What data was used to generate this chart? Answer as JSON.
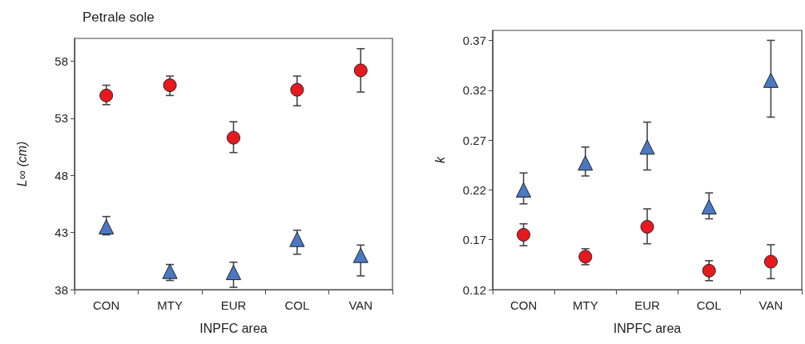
{
  "chart_data": [
    {
      "type": "scatter",
      "title": "Petrale sole",
      "xlabel": "INPFC area",
      "ylabel": "L∞ (cm)",
      "categories": [
        "CON",
        "MTY",
        "EUR",
        "COL",
        "VAN"
      ],
      "ylim": [
        38,
        60
      ],
      "yticks": [
        38,
        43,
        48,
        53,
        58
      ],
      "grid": false,
      "series": [
        {
          "color": "#e8191e",
          "marker": "circle",
          "values": [
            55.0,
            55.9,
            51.3,
            55.5,
            57.2
          ],
          "errors": [
            [
              54.2,
              55.9
            ],
            [
              55.0,
              56.7
            ],
            [
              50.0,
              52.7
            ],
            [
              54.1,
              56.7
            ],
            [
              55.3,
              59.1
            ]
          ]
        },
        {
          "color": "#4a78c2",
          "marker": "triangle",
          "values": [
            43.5,
            39.6,
            39.5,
            42.4,
            41.0
          ],
          "errors": [
            [
              42.8,
              44.4
            ],
            [
              38.8,
              40.2
            ],
            [
              38.2,
              40.4
            ],
            [
              41.1,
              43.2
            ],
            [
              39.2,
              41.9
            ]
          ]
        }
      ]
    },
    {
      "type": "scatter",
      "xlabel": "INPFC area",
      "ylabel": "k",
      "categories": [
        "CON",
        "MTY",
        "EUR",
        "COL",
        "VAN"
      ],
      "ylim": [
        0.12,
        0.38
      ],
      "yticks": [
        0.12,
        0.17,
        0.22,
        0.27,
        0.32,
        0.37
      ],
      "grid": false,
      "series": [
        {
          "color": "#e8191e",
          "marker": "circle",
          "values": [
            0.175,
            0.153,
            0.183,
            0.139,
            0.148
          ],
          "errors": [
            [
              0.164,
              0.186
            ],
            [
              0.145,
              0.161
            ],
            [
              0.166,
              0.201
            ],
            [
              0.129,
              0.149
            ],
            [
              0.131,
              0.165
            ]
          ]
        },
        {
          "color": "#4a78c2",
          "marker": "triangle",
          "values": [
            0.22,
            0.247,
            0.263,
            0.203,
            0.33
          ],
          "errors": [
            [
              0.206,
              0.237
            ],
            [
              0.234,
              0.263
            ],
            [
              0.24,
              0.288
            ],
            [
              0.191,
              0.217
            ],
            [
              0.293,
              0.37
            ]
          ]
        }
      ]
    }
  ]
}
